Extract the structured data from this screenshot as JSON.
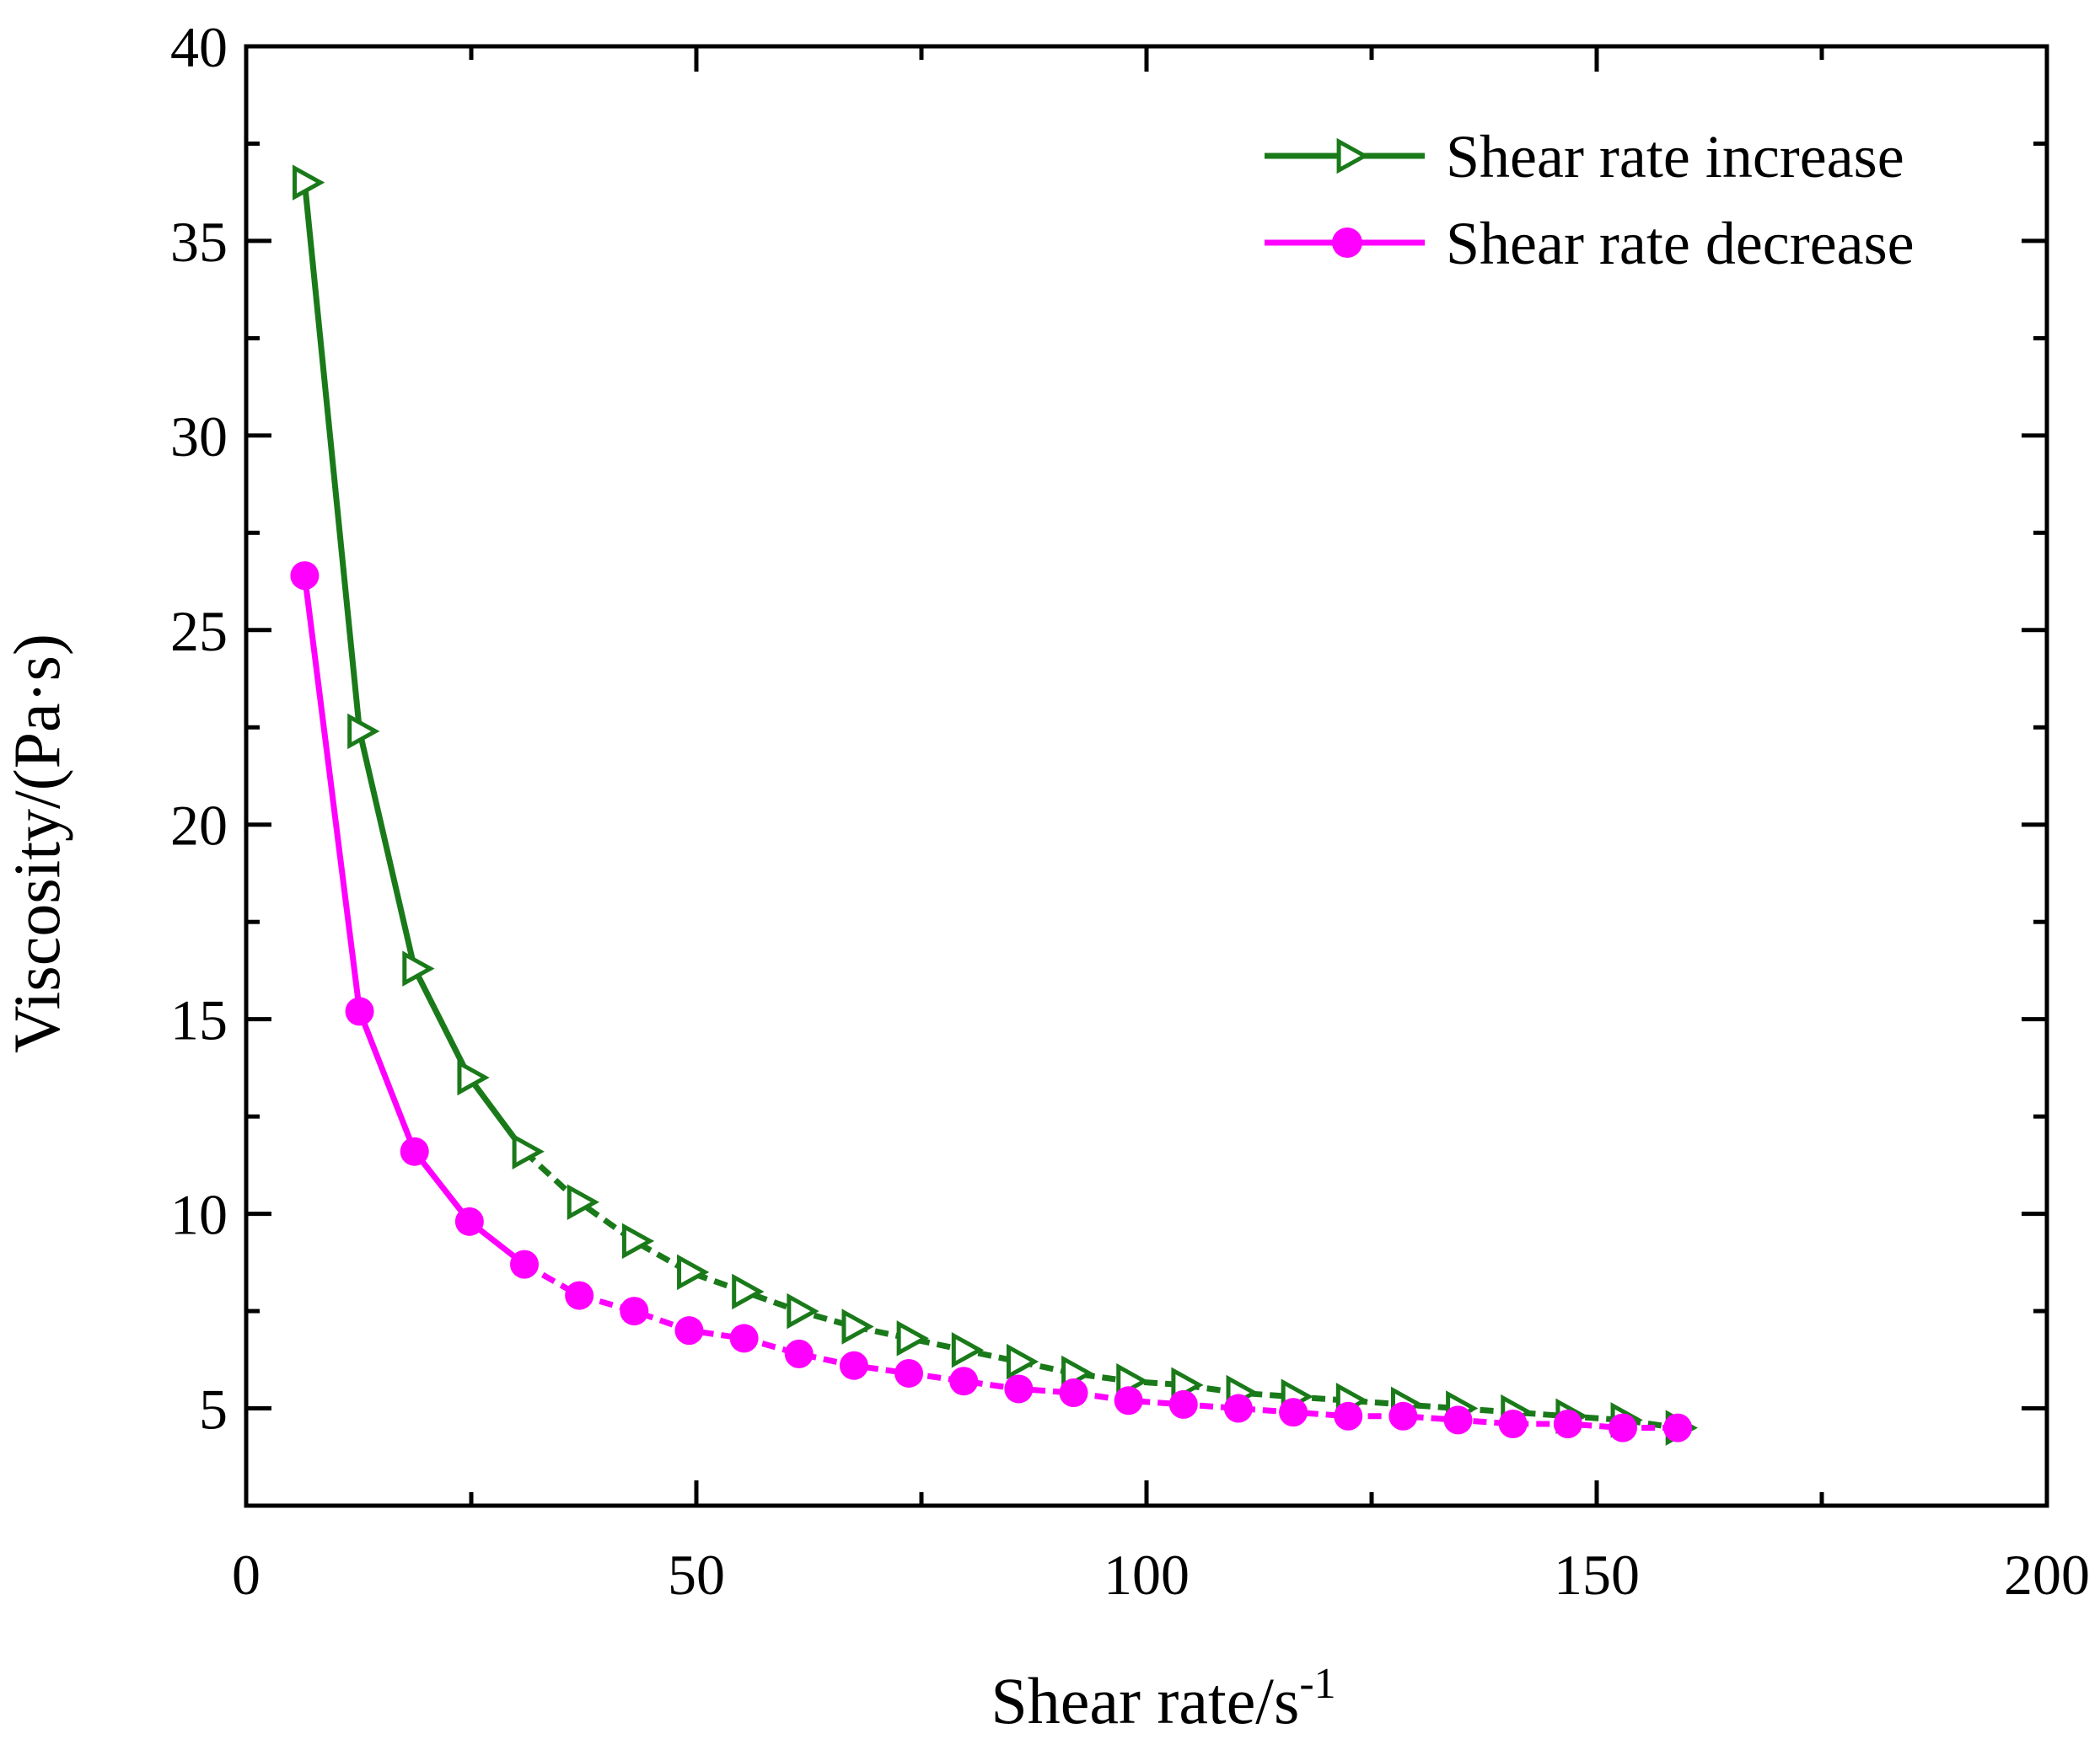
{
  "chart_data": {
    "type": "line",
    "title": "",
    "xlabel": "Shear rate/s",
    "xlabel_superscript": "-1",
    "ylabel": "Viscosity/(Pa·s)",
    "xlim": [
      0,
      200
    ],
    "ylim": [
      2.5,
      40
    ],
    "x_ticks": [
      0,
      50,
      100,
      150,
      200
    ],
    "x_tick_labels": [
      "0",
      "50",
      "100",
      "150",
      "200"
    ],
    "y_ticks": [
      5,
      10,
      15,
      20,
      25,
      30,
      35,
      40
    ],
    "y_tick_labels": [
      "5",
      "10",
      "15",
      "20",
      "25",
      "30",
      "35",
      "40"
    ],
    "grid": false,
    "legend_position": "top-right",
    "series": [
      {
        "name": "Shear rate increase",
        "color": "#1a7a1a",
        "marker": "right-triangle-open",
        "x": [
          6.5,
          12.6,
          18.7,
          24.8,
          30.9,
          37.0,
          43.1,
          49.2,
          55.3,
          61.4,
          67.5,
          73.6,
          79.7,
          85.8,
          91.9,
          98.0,
          104.1,
          110.2,
          116.3,
          122.4,
          128.5,
          134.6,
          140.7,
          146.8,
          152.9,
          159.0
        ],
        "values": [
          36.5,
          22.4,
          16.3,
          13.5,
          11.6,
          10.3,
          9.3,
          8.5,
          8.0,
          7.5,
          7.1,
          6.8,
          6.5,
          6.2,
          5.9,
          5.7,
          5.6,
          5.4,
          5.3,
          5.2,
          5.1,
          5.0,
          4.9,
          4.8,
          4.7,
          4.5
        ]
      },
      {
        "name": "Shear rate decrease",
        "color": "#ff00ff",
        "marker": "circle-filled",
        "x": [
          6.5,
          12.6,
          18.7,
          24.8,
          30.9,
          37.0,
          43.1,
          49.2,
          55.3,
          61.4,
          67.5,
          73.6,
          79.7,
          85.8,
          91.9,
          98.0,
          104.1,
          110.2,
          116.3,
          122.4,
          128.5,
          134.6,
          140.7,
          146.8,
          152.9,
          159.0
        ],
        "values": [
          26.4,
          15.2,
          11.6,
          9.8,
          8.7,
          7.9,
          7.5,
          7.0,
          6.8,
          6.4,
          6.1,
          5.9,
          5.7,
          5.5,
          5.4,
          5.2,
          5.1,
          5.0,
          4.9,
          4.8,
          4.8,
          4.7,
          4.6,
          4.6,
          4.5,
          4.5
        ]
      }
    ]
  }
}
